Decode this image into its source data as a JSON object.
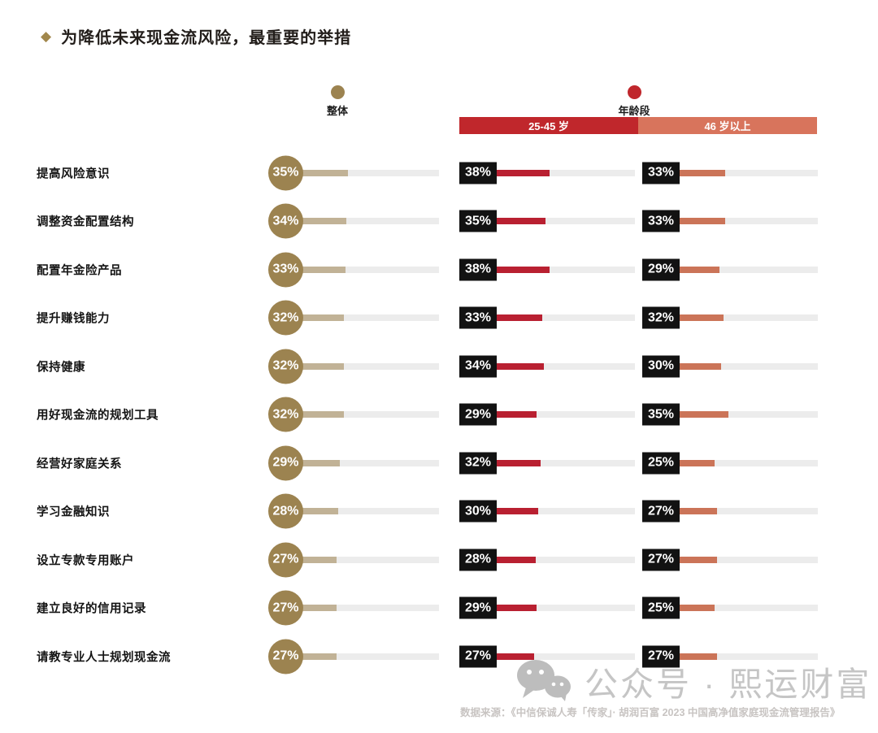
{
  "title": {
    "bullet_icon": "diamond-icon",
    "text": "为降低未来现金流风险，最重要的举措"
  },
  "legend": {
    "overall": {
      "label": "整体",
      "dot_color": "#9c8350"
    },
    "age_group": {
      "label": "年龄段",
      "dot_color": "#c0272c"
    }
  },
  "header_bar": {
    "segments": [
      {
        "label": "25-45 岁",
        "color": "#c0272c"
      },
      {
        "label": "46 岁以上",
        "color": "#d8745c"
      }
    ]
  },
  "chart_data": {
    "type": "bar",
    "orientation": "horizontal",
    "title": "为降低未来现金流风险，最重要的举措",
    "unit": "%",
    "value_range": [
      0,
      100
    ],
    "grid": false,
    "legend_position": "top",
    "track_color": "#ececec",
    "value_label_style": "black-box-white-text",
    "categories": [
      "提高风险意识",
      "调整资金配置结构",
      "配置年金险产品",
      "提升赚钱能力",
      "保持健康",
      "用好现金流的规划工具",
      "经营好家庭关系",
      "学习金融知识",
      "设立专款专用账户",
      "建立良好的信用记录",
      "请教专业人士规划现金流"
    ],
    "series": [
      {
        "name": "整体",
        "marker_color": "#9c8350",
        "bar_color": "#c1b296",
        "values": [
          35,
          34,
          33,
          32,
          32,
          32,
          29,
          28,
          27,
          27,
          27
        ]
      },
      {
        "name": "25-45 岁",
        "marker_color": "#c0272c",
        "bar_color": "#b92031",
        "values": [
          38,
          35,
          38,
          33,
          34,
          29,
          32,
          30,
          28,
          29,
          27
        ]
      },
      {
        "name": "46 岁以上",
        "marker_color": "#d8745c",
        "bar_color": "#cb7458",
        "values": [
          33,
          33,
          29,
          32,
          30,
          35,
          25,
          27,
          27,
          25,
          27
        ]
      }
    ]
  },
  "watermark": {
    "icon": "wechat-icon",
    "text": "公众号 · 熙运财富",
    "color": "#c5c5c5"
  },
  "footer": {
    "source_text": "数据来源：《中信保诚人寿「传家」· 胡润百富 2023 中国高净值家庭现金流管理报告》"
  }
}
